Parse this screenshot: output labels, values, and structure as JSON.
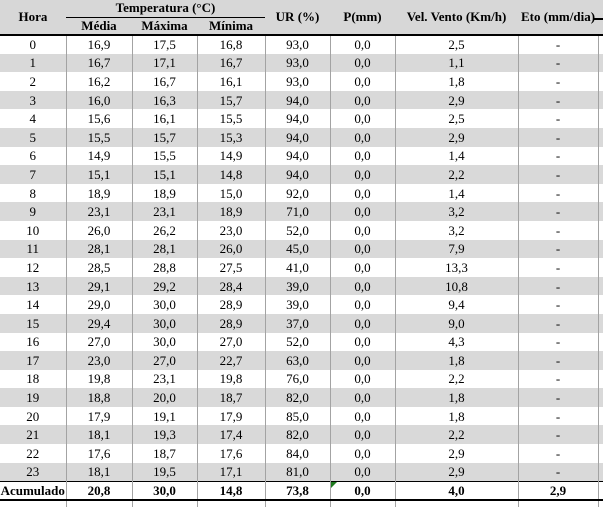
{
  "table": {
    "header": {
      "hora": "Hora",
      "temperatura_group": "Temperatura (°C)",
      "media": "Média",
      "maxima": "Máxima",
      "minima": "Mínima",
      "ur": "UR (%)",
      "p": "P(mm)",
      "vento": "Vel. Vento (Km/h)",
      "eto": "Eto (mm/dia)"
    },
    "rows": [
      {
        "hora": "0",
        "media": "16,9",
        "maxima": "17,5",
        "minima": "16,8",
        "ur": "93,0",
        "p": "0,0",
        "vento": "2,5",
        "eto": "-"
      },
      {
        "hora": "1",
        "media": "16,7",
        "maxima": "17,1",
        "minima": "16,7",
        "ur": "93,0",
        "p": "0,0",
        "vento": "1,1",
        "eto": "-"
      },
      {
        "hora": "2",
        "media": "16,2",
        "maxima": "16,7",
        "minima": "16,1",
        "ur": "93,0",
        "p": "0,0",
        "vento": "1,8",
        "eto": "-"
      },
      {
        "hora": "3",
        "media": "16,0",
        "maxima": "16,3",
        "minima": "15,7",
        "ur": "94,0",
        "p": "0,0",
        "vento": "2,9",
        "eto": "-"
      },
      {
        "hora": "4",
        "media": "15,6",
        "maxima": "16,1",
        "minima": "15,5",
        "ur": "94,0",
        "p": "0,0",
        "vento": "2,5",
        "eto": "-"
      },
      {
        "hora": "5",
        "media": "15,5",
        "maxima": "15,7",
        "minima": "15,3",
        "ur": "94,0",
        "p": "0,0",
        "vento": "2,9",
        "eto": "-"
      },
      {
        "hora": "6",
        "media": "14,9",
        "maxima": "15,5",
        "minima": "14,9",
        "ur": "94,0",
        "p": "0,0",
        "vento": "1,4",
        "eto": "-"
      },
      {
        "hora": "7",
        "media": "15,1",
        "maxima": "15,1",
        "minima": "14,8",
        "ur": "94,0",
        "p": "0,0",
        "vento": "2,2",
        "eto": "-"
      },
      {
        "hora": "8",
        "media": "18,9",
        "maxima": "18,9",
        "minima": "15,0",
        "ur": "92,0",
        "p": "0,0",
        "vento": "1,4",
        "eto": "-"
      },
      {
        "hora": "9",
        "media": "23,1",
        "maxima": "23,1",
        "minima": "18,9",
        "ur": "71,0",
        "p": "0,0",
        "vento": "3,2",
        "eto": "-"
      },
      {
        "hora": "10",
        "media": "26,0",
        "maxima": "26,2",
        "minima": "23,0",
        "ur": "52,0",
        "p": "0,0",
        "vento": "3,2",
        "eto": "-"
      },
      {
        "hora": "11",
        "media": "28,1",
        "maxima": "28,1",
        "minima": "26,0",
        "ur": "45,0",
        "p": "0,0",
        "vento": "7,9",
        "eto": "-"
      },
      {
        "hora": "12",
        "media": "28,5",
        "maxima": "28,8",
        "minima": "27,5",
        "ur": "41,0",
        "p": "0,0",
        "vento": "13,3",
        "eto": "-"
      },
      {
        "hora": "13",
        "media": "29,1",
        "maxima": "29,2",
        "minima": "28,4",
        "ur": "39,0",
        "p": "0,0",
        "vento": "10,8",
        "eto": "-"
      },
      {
        "hora": "14",
        "media": "29,0",
        "maxima": "30,0",
        "minima": "28,9",
        "ur": "39,0",
        "p": "0,0",
        "vento": "9,4",
        "eto": "-"
      },
      {
        "hora": "15",
        "media": "29,4",
        "maxima": "30,0",
        "minima": "28,9",
        "ur": "37,0",
        "p": "0,0",
        "vento": "9,0",
        "eto": "-"
      },
      {
        "hora": "16",
        "media": "27,0",
        "maxima": "30,0",
        "minima": "27,0",
        "ur": "52,0",
        "p": "0,0",
        "vento": "4,3",
        "eto": "-"
      },
      {
        "hora": "17",
        "media": "23,0",
        "maxima": "27,0",
        "minima": "22,7",
        "ur": "63,0",
        "p": "0,0",
        "vento": "1,8",
        "eto": "-"
      },
      {
        "hora": "18",
        "media": "19,8",
        "maxima": "23,1",
        "minima": "19,8",
        "ur": "76,0",
        "p": "0,0",
        "vento": "2,2",
        "eto": "-"
      },
      {
        "hora": "19",
        "media": "18,8",
        "maxima": "20,0",
        "minima": "18,7",
        "ur": "82,0",
        "p": "0,0",
        "vento": "1,8",
        "eto": "-"
      },
      {
        "hora": "20",
        "media": "17,9",
        "maxima": "19,1",
        "minima": "17,9",
        "ur": "85,0",
        "p": "0,0",
        "vento": "1,8",
        "eto": "-"
      },
      {
        "hora": "21",
        "media": "18,1",
        "maxima": "19,3",
        "minima": "17,4",
        "ur": "82,0",
        "p": "0,0",
        "vento": "2,2",
        "eto": "-"
      },
      {
        "hora": "22",
        "media": "17,6",
        "maxima": "18,7",
        "minima": "17,6",
        "ur": "84,0",
        "p": "0,0",
        "vento": "2,9",
        "eto": "-"
      },
      {
        "hora": "23",
        "media": "18,1",
        "maxima": "19,5",
        "minima": "17,1",
        "ur": "81,0",
        "p": "0,0",
        "vento": "2,9",
        "eto": "-"
      }
    ],
    "footer": {
      "label": "Acumulado",
      "media": "20,8",
      "maxima": "30,0",
      "minima": "14,8",
      "ur": "73,8",
      "p": "0,0",
      "vento": "4,0",
      "eto": "2,9"
    }
  },
  "colors": {
    "row_stripe": "#d9d9d9",
    "header_bg": "#d7d7d7",
    "grid_line": "#a3a3a3",
    "rule_line": "#000000",
    "error_indicator_green": "#1e7a1e"
  },
  "icons": {
    "error_indicator": "green-corner-triangle",
    "edge_dash": "header-right-dash"
  }
}
